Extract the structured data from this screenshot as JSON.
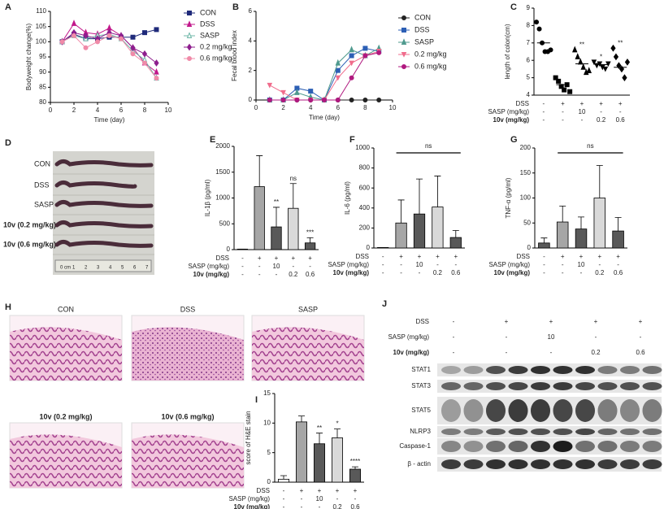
{
  "chart_data": [
    {
      "type": "line",
      "panel": "A",
      "ylabel": "Bodyweight change(%)",
      "xlabel": "Time (day)",
      "x": [
        1,
        2,
        3,
        4,
        5,
        6,
        7,
        8,
        9
      ],
      "xlim": [
        0,
        10
      ],
      "xticks": [
        0,
        2,
        4,
        6,
        8,
        10
      ],
      "ylim": [
        80,
        110
      ],
      "yticks": [
        80,
        85,
        90,
        95,
        100,
        105,
        110
      ],
      "series": [
        {
          "name": "CON",
          "color": "#1f2a7a",
          "marker": "square",
          "values": [
            100,
            102.5,
            101,
            101,
            101.5,
            101.5,
            101.5,
            103,
            104
          ]
        },
        {
          "name": "DSS",
          "color": "#c2188b",
          "marker": "triangle",
          "values": [
            100,
            106,
            103,
            102.5,
            104.5,
            102,
            98,
            93,
            90
          ]
        },
        {
          "name": "SASP",
          "color": "#6fb7a8",
          "marker": "triangle-open",
          "values": [
            100,
            102,
            101,
            102,
            102.5,
            101,
            97,
            94,
            88
          ]
        },
        {
          "name": "0.2 mg/kg",
          "color": "#8e1f8e",
          "marker": "diamond",
          "values": [
            100,
            103,
            102,
            101,
            103,
            102,
            98,
            96,
            93
          ]
        },
        {
          "name": "0.6 mg/kg",
          "color": "#f08aa8",
          "marker": "circle",
          "values": [
            100,
            102,
            98,
            100,
            102,
            101,
            96,
            93,
            88
          ]
        }
      ]
    },
    {
      "type": "line",
      "panel": "B",
      "ylabel": "Fecal blood index",
      "xlabel": "Time (day)",
      "x": [
        1,
        2,
        3,
        4,
        5,
        6,
        7,
        8,
        9
      ],
      "xlim": [
        0,
        10
      ],
      "xticks": [
        0,
        2,
        4,
        6,
        8,
        10
      ],
      "ylim": [
        0,
        6
      ],
      "yticks": [
        0,
        2,
        4,
        6
      ],
      "series": [
        {
          "name": "CON",
          "color": "#222222",
          "marker": "circle",
          "values": [
            0,
            0,
            0,
            0,
            0,
            0,
            0,
            0,
            0
          ]
        },
        {
          "name": "DSS",
          "color": "#2c5fb5",
          "marker": "square",
          "values": [
            0,
            0,
            0.8,
            0.6,
            0,
            2,
            3,
            3.5,
            3.3
          ]
        },
        {
          "name": "SASP",
          "color": "#4f9a8e",
          "marker": "triangle",
          "values": [
            0,
            0,
            0.5,
            0.2,
            0,
            2.5,
            3.4,
            3,
            3.5
          ]
        },
        {
          "name": "0.2 mg/kg",
          "color": "#f06c8c",
          "marker": "triangle-down",
          "values": [
            1,
            0.5,
            0,
            0,
            0,
            1.5,
            2.5,
            3,
            3.3
          ]
        },
        {
          "name": "0.6 mg/kg",
          "color": "#b0197f",
          "marker": "circle",
          "values": [
            0,
            0,
            0,
            0,
            0,
            0,
            1.5,
            3,
            3.2
          ]
        }
      ]
    },
    {
      "type": "dot",
      "panel": "C",
      "ylabel": "length of colon(cm)",
      "ylim": [
        4,
        9
      ],
      "yticks": [
        4,
        5,
        6,
        7,
        8,
        9
      ],
      "values": [
        [
          8.2,
          7.8,
          7.0,
          6.5,
          6.5,
          6.6
        ],
        [
          5.0,
          4.8,
          4.5,
          4.3,
          4.6,
          4.2
        ],
        [
          6.6,
          6.2,
          5.9,
          5.6,
          5.3,
          5.4
        ],
        [
          5.9,
          5.7,
          5.8,
          5.6,
          5.5,
          5.8
        ],
        [
          6.7,
          6.2,
          5.7,
          5.5,
          5.0,
          5.9
        ]
      ],
      "means": [
        7.0,
        4.6,
        5.8,
        5.75,
        5.6
      ],
      "markers": [
        "circle",
        "square",
        "triangle",
        "triangle-down",
        "diamond"
      ],
      "annotations": [
        null,
        null,
        "**",
        "*",
        "**"
      ],
      "conditions": [
        {
          "label": "DSS",
          "values": [
            "-",
            "+",
            "+",
            "+",
            "+"
          ]
        },
        {
          "label": "SASP (mg/kg)",
          "values": [
            "-",
            "-",
            "10",
            "-",
            "-"
          ]
        },
        {
          "label": "10v (mg/kg)",
          "values": [
            "-",
            "-",
            "-",
            "0.2",
            "0.6"
          ]
        }
      ]
    },
    {
      "type": "bar",
      "panel": "E",
      "ylabel": "IL-1β (pg/ml)",
      "ylim": [
        0,
        2000
      ],
      "yticks": [
        0,
        500,
        1000,
        1500,
        2000
      ],
      "values": [
        10,
        1220,
        440,
        800,
        130
      ],
      "errors": [
        0,
        600,
        380,
        480,
        100
      ],
      "colors": [
        "#ffffff",
        "#a6a6a6",
        "#595959",
        "#d9d9d9",
        "#595959"
      ],
      "annotations": [
        null,
        null,
        "**",
        "ns",
        "***"
      ],
      "conditions": [
        {
          "label": "DSS",
          "values": [
            "-",
            "+",
            "+",
            "+",
            "+"
          ]
        },
        {
          "label": "SASP (mg/kg)",
          "values": [
            "-",
            "-",
            "10",
            "-",
            "-"
          ]
        },
        {
          "label": "10v (mg/kg)",
          "values": [
            "-",
            "-",
            "-",
            "0.2",
            "0.6"
          ]
        }
      ]
    },
    {
      "type": "bar",
      "panel": "F",
      "ylabel": "IL-6 (pg/ml)",
      "ylim": [
        0,
        1000
      ],
      "yticks": [
        0,
        200,
        400,
        600,
        800,
        1000
      ],
      "values": [
        5,
        250,
        340,
        410,
        105
      ],
      "errors": [
        0,
        230,
        350,
        310,
        70
      ],
      "colors": [
        "#ffffff",
        "#a6a6a6",
        "#595959",
        "#d9d9d9",
        "#595959"
      ],
      "bracket": "ns",
      "conditions": [
        {
          "label": "DSS",
          "values": [
            "-",
            "+",
            "+",
            "+",
            "+"
          ]
        },
        {
          "label": "SASP (mg/kg)",
          "values": [
            "-",
            "-",
            "10",
            "-",
            "-"
          ]
        },
        {
          "label": "10v (mg/kg)",
          "values": [
            "-",
            "-",
            "-",
            "0.2",
            "0.6"
          ]
        }
      ]
    },
    {
      "type": "bar",
      "panel": "G",
      "ylabel": "TNF-α (pg/ml)",
      "ylim": [
        0,
        200
      ],
      "yticks": [
        0,
        50,
        100,
        150,
        200
      ],
      "values": [
        10,
        52,
        38,
        100,
        34
      ],
      "errors": [
        10,
        32,
        24,
        65,
        27
      ],
      "colors": [
        "#595959",
        "#a6a6a6",
        "#595959",
        "#d9d9d9",
        "#595959"
      ],
      "bracket": "ns",
      "conditions": [
        {
          "label": "DSS",
          "values": [
            "-",
            "+",
            "+",
            "+",
            "+"
          ]
        },
        {
          "label": "SASP (mg/kg)",
          "values": [
            "-",
            "-",
            "10",
            "-",
            "-"
          ]
        },
        {
          "label": "10v (mg/kg)",
          "values": [
            "-",
            "-",
            "-",
            "0.2",
            "0.6"
          ]
        }
      ]
    },
    {
      "type": "bar",
      "panel": "I",
      "ylabel": "score of H&E stain",
      "ylim": [
        0,
        15
      ],
      "yticks": [
        0,
        5,
        10,
        15
      ],
      "values": [
        0.5,
        10.2,
        6.5,
        7.5,
        2.2
      ],
      "errors": [
        0.6,
        1,
        1.8,
        1.5,
        0.4
      ],
      "colors": [
        "#ffffff",
        "#a6a6a6",
        "#595959",
        "#d9d9d9",
        "#595959"
      ],
      "annotations": [
        null,
        null,
        "**",
        "*",
        "****"
      ],
      "conditions": [
        {
          "label": "DSS",
          "values": [
            "-",
            "+",
            "+",
            "+",
            "+"
          ]
        },
        {
          "label": "SASP (mg/kg)",
          "values": [
            "-",
            "-",
            "10",
            "-",
            "-"
          ]
        },
        {
          "label": "10v (mg/kg)",
          "values": [
            "-",
            "-",
            "-",
            "0.2",
            "0.6"
          ]
        }
      ]
    }
  ],
  "photo": {
    "panel": "D",
    "labels": [
      "CON",
      "DSS",
      "SASP",
      "10v (0.2 mg/kg)",
      "10v (0.6 mg/kg)"
    ],
    "ruler": [
      "0 cm",
      "1",
      "2",
      "3",
      "4",
      "5",
      "6",
      "7"
    ]
  },
  "histology": {
    "panel": "H",
    "labels": [
      "CON",
      "DSS",
      "SASP",
      "10v (0.2 mg/kg)",
      "10v (0.6 mg/kg)"
    ]
  },
  "western_blot": {
    "panel": "J",
    "conditions": [
      {
        "label": "DSS",
        "values": [
          "-",
          "+",
          "+",
          "+",
          "+"
        ]
      },
      {
        "label": "SASP (mg/kg)",
        "values": [
          "-",
          "-",
          "10",
          "-",
          "-"
        ]
      },
      {
        "label": "10v (mg/kg)",
        "values": [
          "-",
          "-",
          "-",
          "0.2",
          "0.6"
        ]
      }
    ],
    "proteins": [
      "STAT1",
      "STAT3",
      "STAT5",
      "NLRP3",
      "Caspase-1",
      "β - actin"
    ]
  }
}
